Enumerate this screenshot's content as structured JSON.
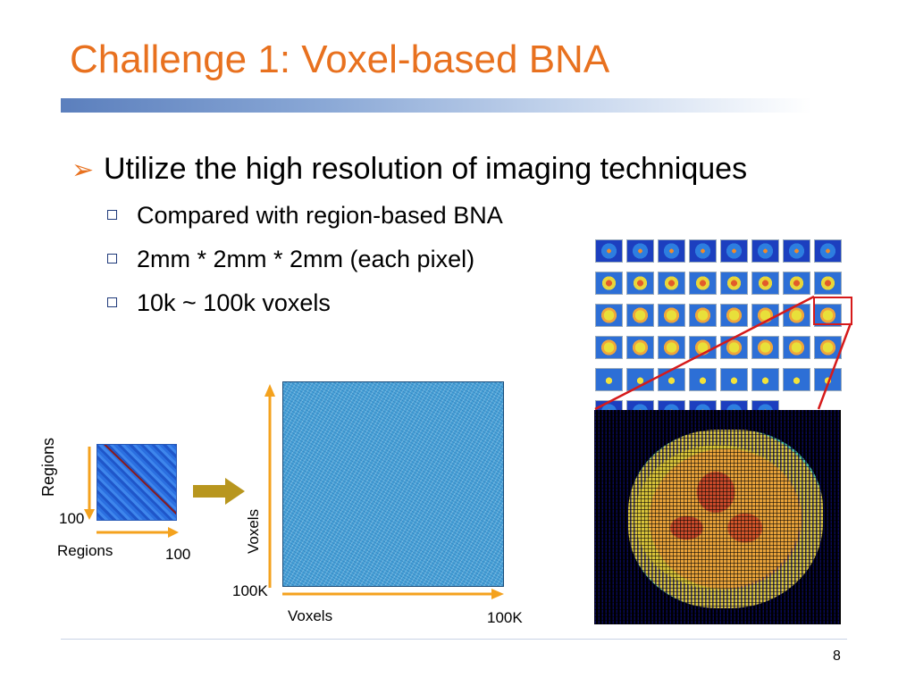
{
  "slide": {
    "title": "Challenge 1: Voxel-based BNA",
    "page_number": "8"
  },
  "bullets": {
    "main": "Utilize the high resolution of imaging techniques",
    "main_icon": "arrow-bullet-icon",
    "subs": [
      "Compared with region-based BNA",
      "2mm * 2mm * 2mm (each pixel)",
      "10k ~ 100k voxels"
    ],
    "sub_icon": "square-bullet-icon"
  },
  "region_matrix": {
    "y_label": "Regions",
    "x_label": "Regions",
    "y_size": "100",
    "x_size": "100"
  },
  "voxel_matrix": {
    "y_label": "Voxels",
    "x_label": "Voxels",
    "y_size": "100K",
    "x_size": "100K"
  },
  "colors": {
    "title": "#e8711f",
    "axis_arrow": "#f4a21e",
    "transform_arrow": "#b8961e",
    "highlight": "#d61a1a"
  }
}
